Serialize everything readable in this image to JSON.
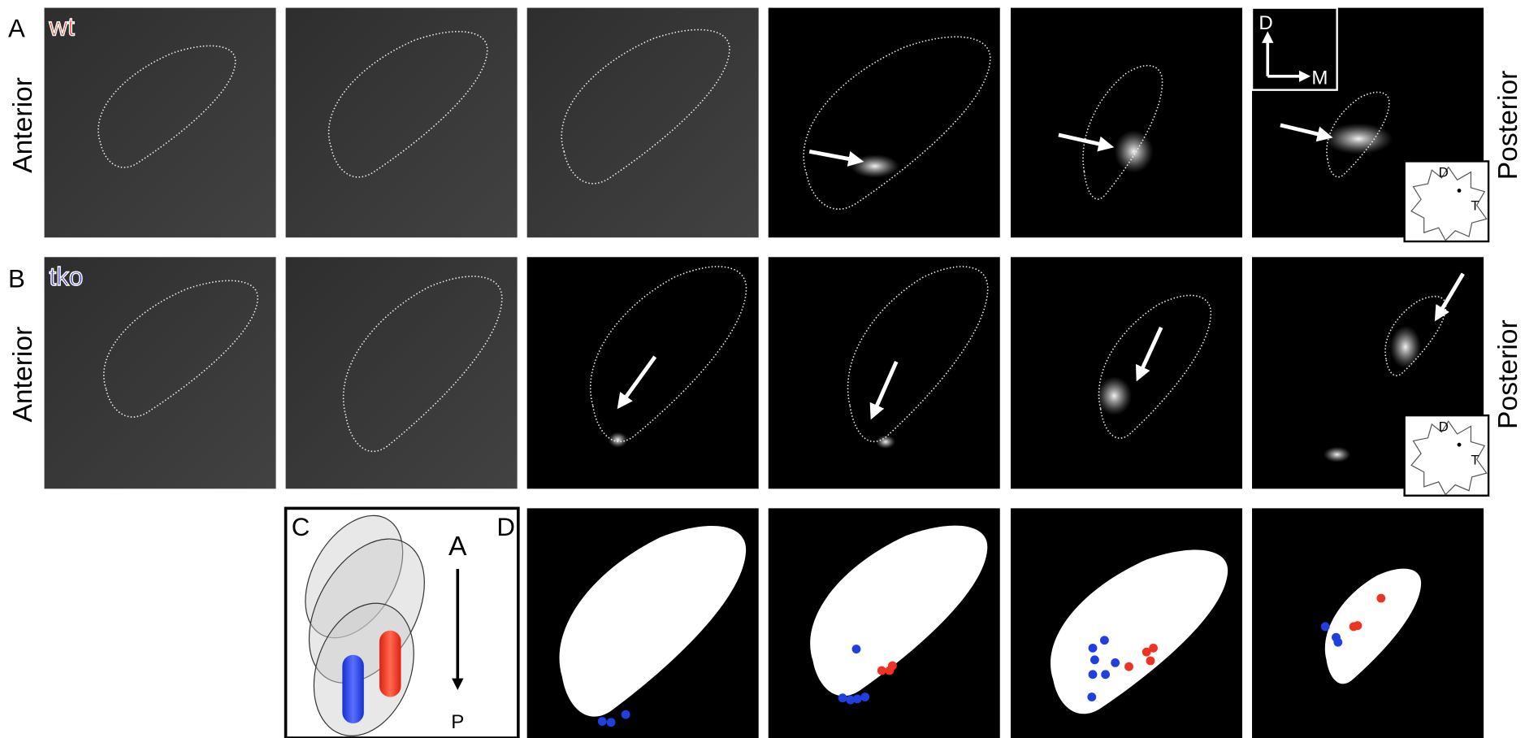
{
  "rows": [
    {
      "label": "A",
      "genotype": "wt",
      "start": "Anterior",
      "end": "Posterior"
    },
    {
      "label": "B",
      "genotype": "tko",
      "start": "Anterior",
      "end": "Posterior"
    }
  ],
  "axes_inset": {
    "up": "D",
    "right": "M"
  },
  "retina_insets": [
    {
      "top": "D",
      "side": "T"
    },
    {
      "top": "D",
      "side": "T"
    }
  ],
  "panel_c": {
    "label": "C",
    "top": "A",
    "bottom": "P"
  },
  "panel_d": {
    "label": "D"
  }
}
